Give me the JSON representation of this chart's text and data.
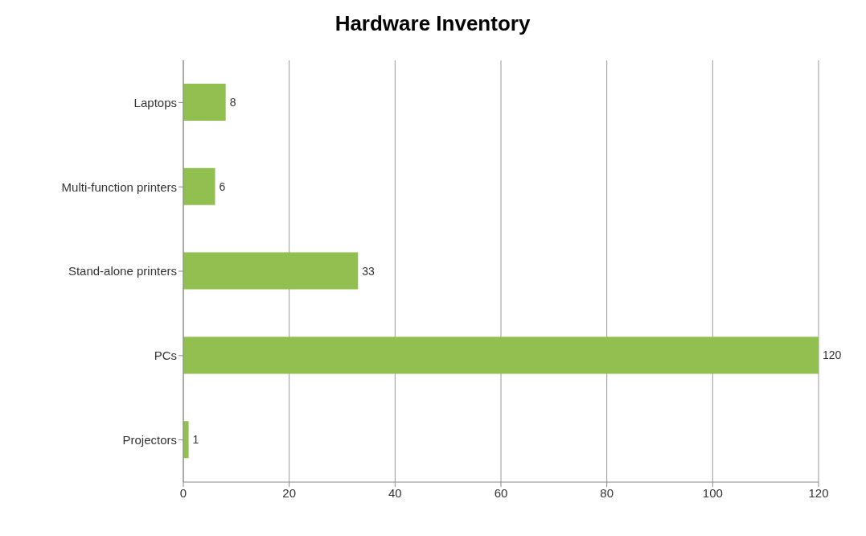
{
  "chart_data": {
    "type": "bar",
    "title": "Hardware Inventory",
    "orientation": "horizontal",
    "categories": [
      "Laptops",
      "Multi-function printers",
      "Stand-alone printers",
      "PCs",
      "Projectors"
    ],
    "values": [
      8,
      6,
      33,
      120,
      1
    ],
    "color": "#92c050",
    "xlim": [
      0,
      120
    ],
    "xticks": [
      0,
      20,
      40,
      60,
      80,
      100,
      120
    ],
    "grid": "x",
    "data_labels": true
  }
}
